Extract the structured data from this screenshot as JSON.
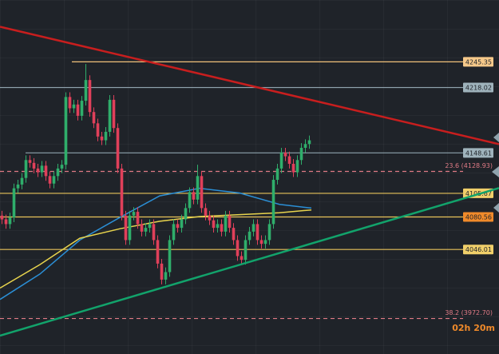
{
  "chart_data": {
    "type": "candlestick",
    "xlim": [
      0,
      125
    ],
    "ylim": [
      3935,
      4311
    ],
    "up_color": "#2fae6b",
    "down_color": "#e0405a",
    "open": [
      4082,
      4078,
      4073,
      4080,
      4111,
      4115,
      4122,
      4141,
      4138,
      4132,
      4128,
      4135,
      4124,
      4116,
      4124,
      4132,
      4136,
      4208,
      4196,
      4200,
      4188,
      4204,
      4226,
      4192,
      4180,
      4166,
      4162,
      4171,
      4205,
      4175,
      4132,
      4082,
      4056,
      4082,
      4086,
      4073,
      4065,
      4069,
      4073,
      4056,
      4031,
      4014,
      4022,
      4056,
      4073,
      4069,
      4078,
      4090,
      4107,
      4099,
      4124,
      4090,
      4082,
      4077,
      4069,
      4073,
      4065,
      4082,
      4069,
      4056,
      4039,
      4035,
      4056,
      4065,
      4073,
      4056,
      4052,
      4056,
      4073,
      4120,
      4132,
      4149,
      4145,
      4137,
      4128,
      4141,
      4154,
      4158
    ],
    "high": [
      4087,
      4083,
      4085,
      4116,
      4120,
      4127,
      4146,
      4146,
      4143,
      4137,
      4140,
      4140,
      4129,
      4129,
      4137,
      4141,
      4213,
      4213,
      4205,
      4205,
      4209,
      4243,
      4231,
      4197,
      4185,
      4171,
      4176,
      4210,
      4210,
      4180,
      4137,
      4087,
      4087,
      4091,
      4091,
      4078,
      4074,
      4078,
      4078,
      4061,
      4036,
      4027,
      4061,
      4078,
      4078,
      4083,
      4095,
      4112,
      4112,
      4136,
      4129,
      4095,
      4087,
      4082,
      4078,
      4078,
      4087,
      4087,
      4074,
      4061,
      4044,
      4061,
      4070,
      4078,
      4078,
      4061,
      4061,
      4078,
      4125,
      4137,
      4154,
      4154,
      4150,
      4142,
      4146,
      4159,
      4163,
      4167
    ],
    "low": [
      4073,
      4068,
      4068,
      4075,
      4106,
      4110,
      4117,
      4133,
      4127,
      4123,
      4123,
      4119,
      4111,
      4111,
      4119,
      4127,
      4131,
      4191,
      4191,
      4183,
      4183,
      4199,
      4187,
      4175,
      4161,
      4157,
      4157,
      4166,
      4170,
      4127,
      4077,
      4051,
      4051,
      4077,
      4068,
      4060,
      4060,
      4064,
      4051,
      4026,
      4009,
      4009,
      4017,
      4051,
      4064,
      4064,
      4073,
      4085,
      4094,
      4094,
      4085,
      4077,
      4072,
      4064,
      4064,
      4060,
      4060,
      4064,
      4051,
      4034,
      4030,
      4030,
      4051,
      4060,
      4051,
      4047,
      4047,
      4051,
      4068,
      4115,
      4127,
      4140,
      4132,
      4123,
      4123,
      4136,
      4149,
      4153
    ],
    "close": [
      4078,
      4073,
      4080,
      4111,
      4115,
      4122,
      4141,
      4138,
      4132,
      4128,
      4135,
      4124,
      4116,
      4124,
      4132,
      4136,
      4208,
      4196,
      4200,
      4188,
      4204,
      4226,
      4192,
      4180,
      4166,
      4162,
      4171,
      4205,
      4175,
      4132,
      4082,
      4056,
      4082,
      4086,
      4073,
      4065,
      4069,
      4073,
      4056,
      4031,
      4014,
      4022,
      4056,
      4073,
      4069,
      4078,
      4090,
      4107,
      4099,
      4124,
      4090,
      4082,
      4077,
      4069,
      4073,
      4065,
      4082,
      4069,
      4056,
      4039,
      4035,
      4056,
      4065,
      4073,
      4056,
      4052,
      4056,
      4073,
      4120,
      4132,
      4149,
      4145,
      4137,
      4128,
      4141,
      4154,
      4158,
      4162
    ],
    "moving_averages": [
      {
        "color": "#2b8fd6",
        "x": [
          0,
          10,
          20,
          30,
          40,
          50,
          60,
          70,
          78
        ],
        "values": [
          3993,
          4020,
          4056,
          4080,
          4103,
          4111,
          4106,
          4094,
          4090
        ]
      },
      {
        "color": "#e8d44d",
        "x": [
          0,
          10,
          20,
          30,
          40,
          50,
          60,
          70,
          78
        ],
        "values": [
          4005,
          4030,
          4058,
          4068,
          4076,
          4081,
          4083,
          4085,
          4088
        ]
      }
    ],
    "trend_lines": [
      {
        "color": "#c81e1e",
        "x": [
          0,
          125
        ],
        "values": [
          4282.6,
          4157.9
        ]
      },
      {
        "color": "#12a36b",
        "x": [
          0,
          125
        ],
        "values": [
          3954.4,
          4111.3
        ]
      }
    ],
    "levels": [
      {
        "price": 4245.35,
        "start": 18,
        "color": "#f2c27a",
        "label_bg": "#f6c98a",
        "dash": false
      },
      {
        "price": 4218.02,
        "start": 0,
        "color": "#8fa3ad",
        "label_bg": "#9fb3bc",
        "dash": false
      },
      {
        "price": 4148.61,
        "start": 6.4,
        "color": "#8fa3ad",
        "label_bg": "#9fb3bc",
        "dash": false
      },
      {
        "price": 4128.93,
        "label": "23.6 (4128.93)",
        "start": 0,
        "color": "#e07b86",
        "dash": true
      },
      {
        "price": 4105.67,
        "start": 0,
        "color": "#e8c35a",
        "label_bg": "#f0cf6a",
        "dash": false
      },
      {
        "price": 4080.56,
        "start": 0,
        "color": "#e8c35a",
        "label_bg": "#f08a2a",
        "dash": false
      },
      {
        "price": 4046.01,
        "start": 0,
        "color": "#e8c35a",
        "label_bg": "#f0cf6a",
        "dash": false
      },
      {
        "price": 3972.7,
        "label": "38.2 (3972.70)",
        "start": 0,
        "color": "#e07b86",
        "dash": true
      }
    ],
    "timer": "02h 20m"
  }
}
